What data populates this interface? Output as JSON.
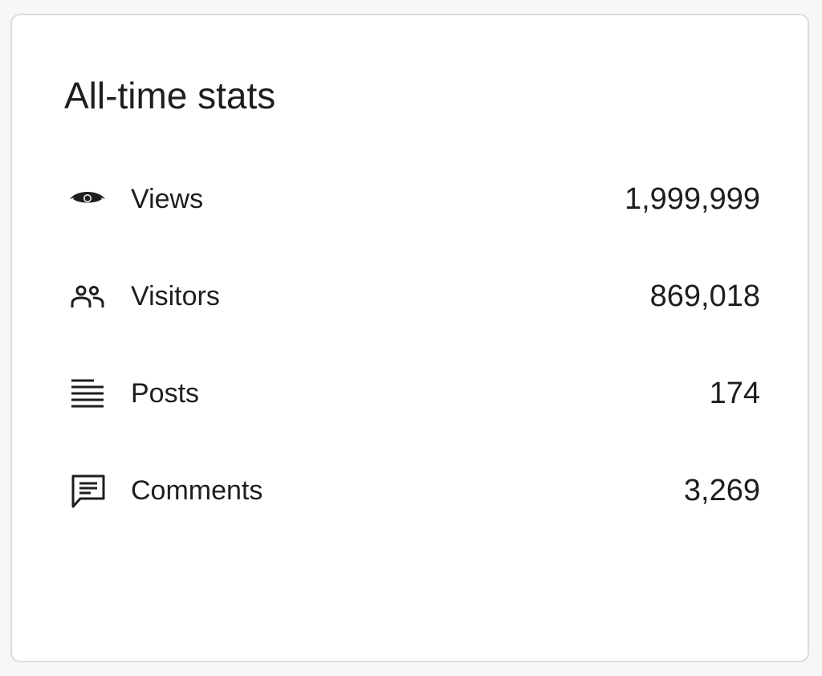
{
  "header": {
    "title": "All-time stats"
  },
  "stats": [
    {
      "label": "Views",
      "value": "1,999,999"
    },
    {
      "label": "Visitors",
      "value": "869,018"
    },
    {
      "label": "Posts",
      "value": "174"
    },
    {
      "label": "Comments",
      "value": "3,269"
    }
  ]
}
